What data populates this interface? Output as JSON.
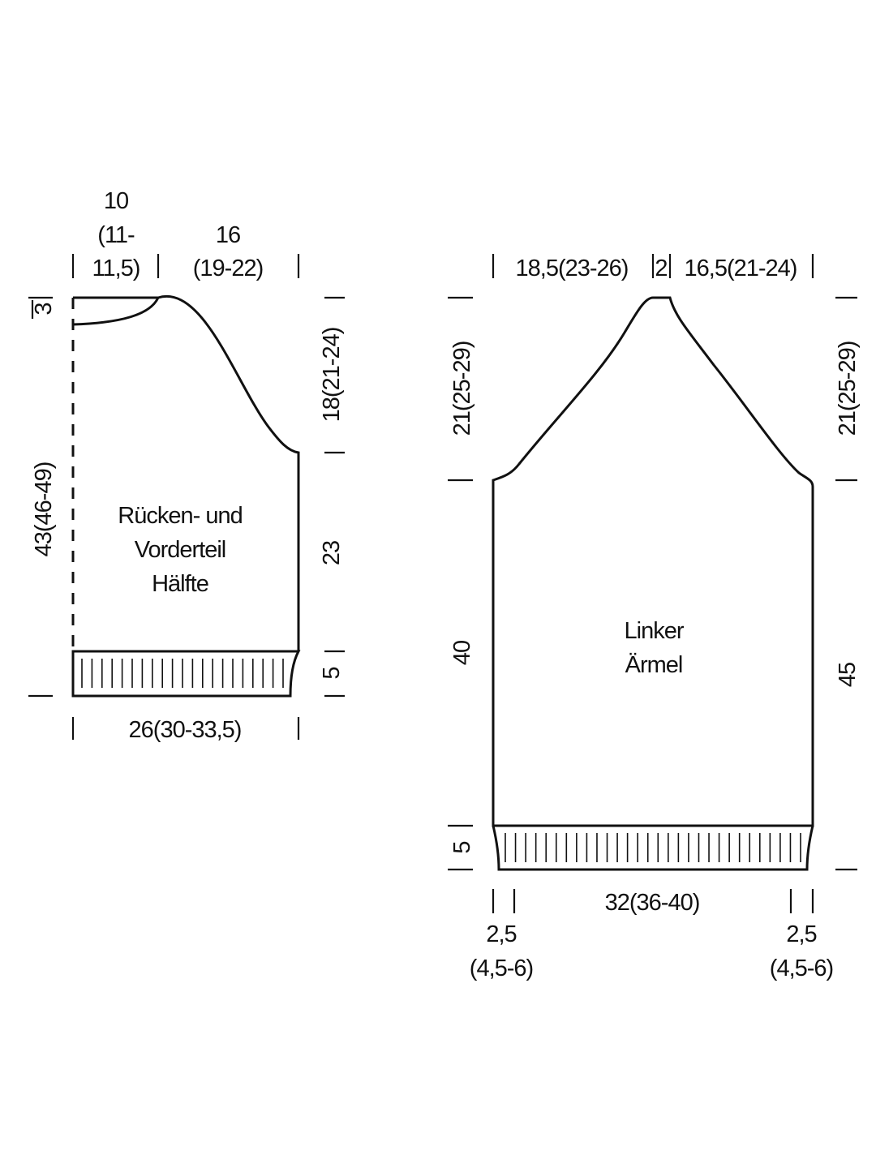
{
  "body": {
    "label": [
      "Rücken- und",
      "Vorderteil",
      "Hälfte"
    ],
    "top_neck": [
      "10",
      "(11-",
      "11,5)"
    ],
    "top_shoulder": [
      "16",
      "(19-22)"
    ],
    "left_neck_depth": "3",
    "left_length": "43(46-49)",
    "right_armhole": "18(21-24)",
    "right_side": "23",
    "right_rib": "5",
    "bottom_width": "26(30-33,5)"
  },
  "sleeve": {
    "label": [
      "Linker",
      "Ärmel"
    ],
    "top_left": "18,5(23-26)",
    "top_middle": "2",
    "top_right": "16,5(21-24)",
    "left_raglan": "21(25-29)",
    "left_length": "40",
    "left_rib": "5",
    "right_raglan": "21(25-29)",
    "right_length": "45",
    "bottom_width": "32(36-40)",
    "bottom_left": [
      "2,5",
      "(4,5-6)"
    ],
    "bottom_right": [
      "2,5",
      "(4,5-6)"
    ]
  }
}
